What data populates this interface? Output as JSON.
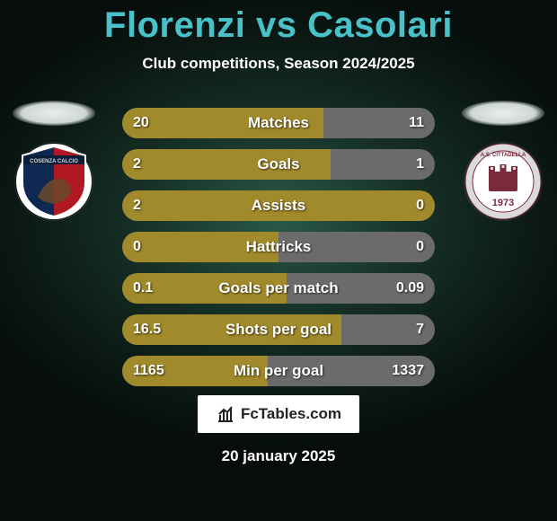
{
  "title": "Florenzi vs Casolari",
  "title_color": "#49c1c8",
  "subtitle": "Club competitions, Season 2024/2025",
  "date": "20 january 2025",
  "bar_left_color": "#a08a2b",
  "bar_right_color": "#6b6b6b",
  "text_color": "#ffffff",
  "rows": [
    {
      "metric": "Matches",
      "left": "20",
      "right": "11",
      "left_pct": 64.5
    },
    {
      "metric": "Goals",
      "left": "2",
      "right": "1",
      "left_pct": 66.7
    },
    {
      "metric": "Assists",
      "left": "2",
      "right": "0",
      "left_pct": 100
    },
    {
      "metric": "Hattricks",
      "left": "0",
      "right": "0",
      "left_pct": 50
    },
    {
      "metric": "Goals per match",
      "left": "0.1",
      "right": "0.09",
      "left_pct": 52.6
    },
    {
      "metric": "Shots per goal",
      "left": "16.5",
      "right": "7",
      "left_pct": 70.2
    },
    {
      "metric": "Min per goal",
      "left": "1165",
      "right": "1337",
      "left_pct": 46.6
    }
  ],
  "player_left": {
    "club": "Cosenza Calcio",
    "badge_primary": "#0f2a52",
    "badge_secondary": "#b01923"
  },
  "player_right": {
    "club": "A.S. Cittadella",
    "badge_primary": "#7a2a3a",
    "badge_ring": "#d9d9de",
    "badge_year": "1973"
  },
  "footer": {
    "brand": "FcTables.com"
  }
}
